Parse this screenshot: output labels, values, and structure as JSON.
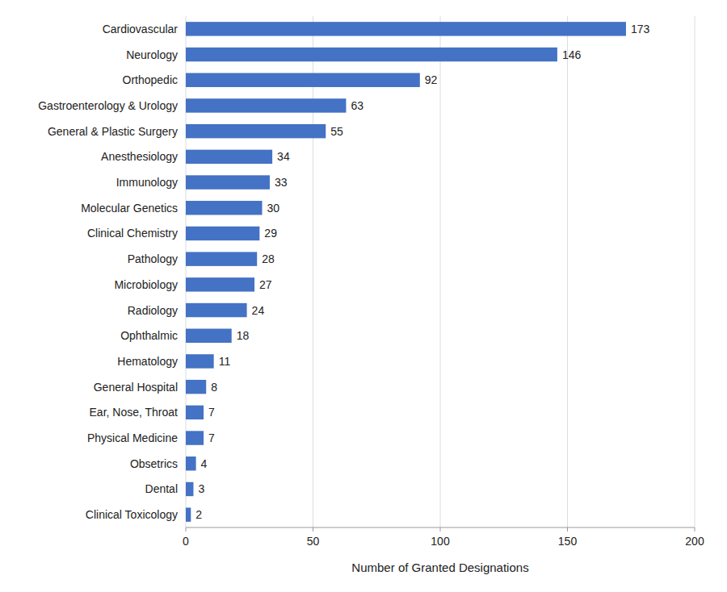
{
  "chart_data": {
    "type": "bar",
    "orientation": "horizontal",
    "categories": [
      "Clinical Toxicology",
      "Dental",
      "Obsetrics",
      "Physical Medicine",
      "Ear, Nose, Throat",
      "General Hospital",
      "Hematology",
      "Ophthalmic",
      "Radiology",
      "Microbiology",
      "Pathology",
      "Clinical Chemistry",
      "Molecular Genetics",
      "Immunology",
      "Anesthesiology",
      "General & Plastic Surgery",
      "Gastroenterology & Urology",
      "Orthopedic",
      "Neurology",
      "Cardiovascular"
    ],
    "values": [
      2,
      3,
      4,
      7,
      7,
      8,
      11,
      18,
      24,
      27,
      28,
      29,
      30,
      33,
      34,
      55,
      63,
      92,
      146,
      173
    ],
    "color": "#4472C4",
    "xlabel": "Number of Granted Designations",
    "xlim": [
      0,
      200
    ],
    "xticks": [
      0,
      50,
      100,
      150,
      200
    ],
    "grid": true,
    "data_labels": true
  }
}
